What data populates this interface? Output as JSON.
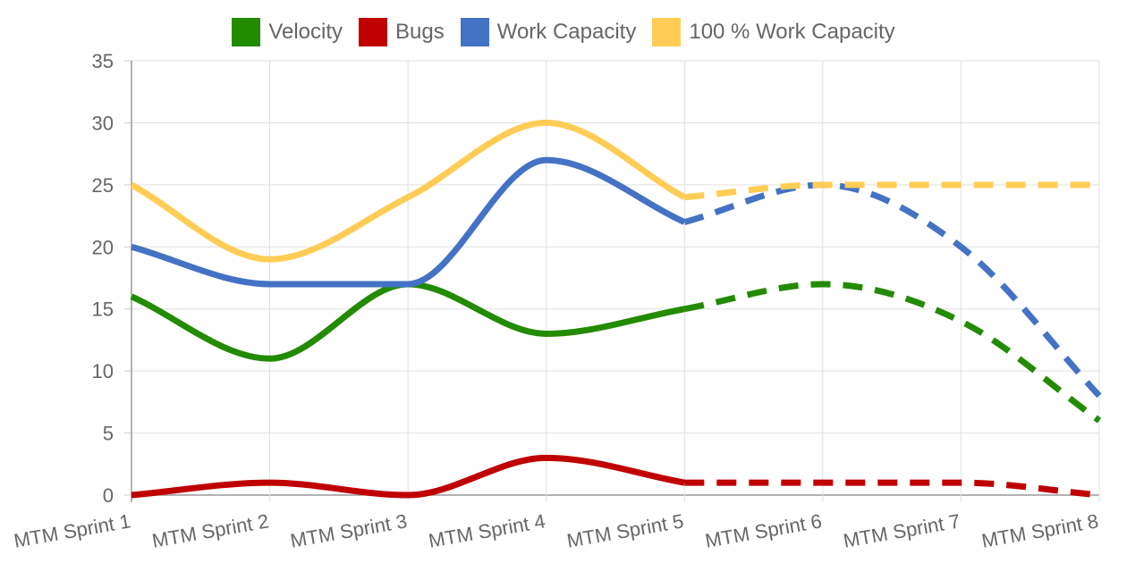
{
  "chart_data": {
    "type": "line",
    "categories": [
      "MTM Sprint 1",
      "MTM Sprint 2",
      "MTM Sprint 3",
      "MTM Sprint 4",
      "MTM Sprint 5",
      "MTM Sprint 6",
      "MTM Sprint 7",
      "MTM Sprint 8"
    ],
    "y_ticks": [
      "0",
      "5",
      "10",
      "15",
      "20",
      "25",
      "30",
      "35"
    ],
    "ylim": [
      0,
      35
    ],
    "grid": true,
    "legend_position": "top-center",
    "actual_until_index": 4,
    "series": [
      {
        "name": "Velocity",
        "color": "#228b00",
        "values": [
          16,
          11,
          17,
          13,
          15,
          17,
          14,
          6
        ]
      },
      {
        "name": "Bugs",
        "color": "#c00000",
        "values": [
          0,
          1,
          0,
          3,
          1,
          1,
          1,
          0
        ]
      },
      {
        "name": "Work Capacity",
        "color": "#4472c4",
        "values": [
          20,
          17,
          17,
          27,
          22,
          25,
          20,
          8
        ]
      },
      {
        "name": "100 % Work Capacity",
        "color": "#ffcc55",
        "values": [
          25,
          19,
          24,
          30,
          24,
          25,
          25,
          25
        ]
      }
    ]
  }
}
